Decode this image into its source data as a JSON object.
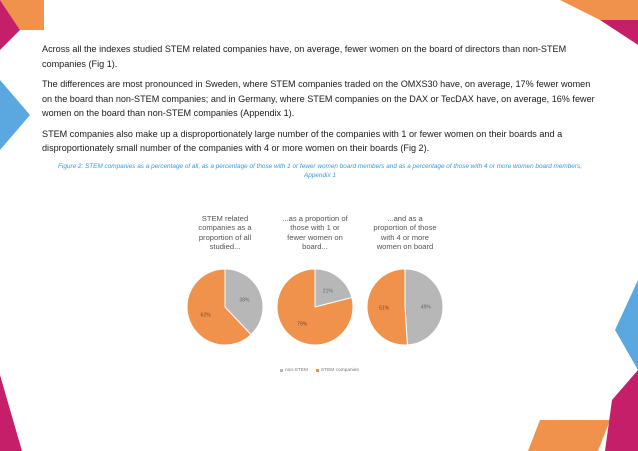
{
  "paragraphs": [
    "Across all the indexes studied STEM related companies have, on average, fewer women on the board of directors than non-STEM companies (Fig 1).",
    "The differences are most pronounced in Sweden, where STEM companies traded on the OMXS30 have, on average, 17% fewer women on the board than non-STEM companies; and in Germany, where STEM companies on the DAX or TecDAX have, on average, 16% fewer women on the board than non-STEM companies (Appendix 1).",
    "STEM companies also make up a disproportionately large number of the companies with 1 or fewer women on their boards and a disproportionately small number of the companies with 4 or more women on their boards (Fig 2)."
  ],
  "caption": "Figure 2: STEM companies as a percentage of all, as a percentage of those with 1 or fewer women board members and as a percentage of those with 4 or more women board members, Appendix 1",
  "colors": {
    "non_stem": "#b7b7b7",
    "stem": "#f0914c",
    "pink": "#c51f6a",
    "blue": "#5aa8df",
    "orange": "#f0914c"
  },
  "chart_data": [
    {
      "type": "pie",
      "title": "STEM related companies as a proportion of all studied...",
      "title_lines": [
        "STEM related",
        "companies as a",
        "proportion of all",
        "studied..."
      ],
      "slices": [
        {
          "name": "non-STEM",
          "value": 38,
          "label": "38%"
        },
        {
          "name": "STEM companies",
          "value": 62,
          "label": "62%"
        }
      ]
    },
    {
      "type": "pie",
      "title": "...as a proportion of those with 1 or fewer women on board...",
      "title_lines": [
        "...as a proportion of",
        "those with 1 or",
        "fewer women on",
        "board..."
      ],
      "slices": [
        {
          "name": "non-STEM",
          "value": 21,
          "label": "21%"
        },
        {
          "name": "STEM companies",
          "value": 79,
          "label": "79%"
        }
      ]
    },
    {
      "type": "pie",
      "title": "...and as a proportion of those with 4 or more women on board",
      "title_lines": [
        "...and as a",
        "proportion of those",
        "with 4 or more",
        "women on board"
      ],
      "slices": [
        {
          "name": "non-STEM",
          "value": 49,
          "label": "49%"
        },
        {
          "name": "STEM companies",
          "value": 51,
          "label": "51%"
        }
      ]
    }
  ],
  "legend": [
    {
      "name": "non-STEM",
      "color": "#b7b7b7"
    },
    {
      "name": "STEM companies",
      "color": "#f0914c"
    }
  ]
}
